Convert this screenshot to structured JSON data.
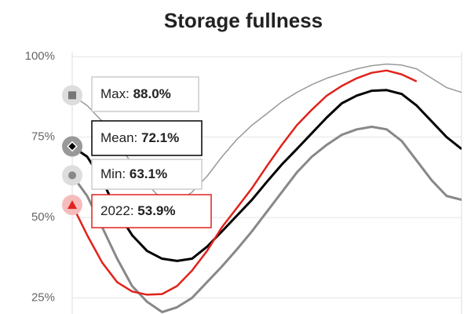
{
  "chart_data": {
    "type": "line",
    "title": "Storage fullness",
    "categories": [
      null,
      null,
      null,
      null,
      null,
      null,
      null,
      null,
      null,
      null,
      null,
      null,
      null,
      null,
      null,
      null,
      null,
      null,
      null,
      null,
      null,
      null,
      null,
      null,
      null,
      null,
      null
    ],
    "ylim": [
      20,
      102
    ],
    "yticks": [
      {
        "value": 25,
        "label": "25%"
      },
      {
        "value": 50,
        "label": "50%"
      },
      {
        "value": 75,
        "label": "75%"
      },
      {
        "value": 100,
        "label": "100%"
      }
    ],
    "grid": true,
    "series": [
      {
        "name": "Max:",
        "start_label": "88.0%",
        "color": "#999999",
        "width": 1.5,
        "marker": "square",
        "values": [
          88.0,
          84.8,
          79.9,
          73.8,
          66.5,
          60.4,
          55.5,
          54.8,
          57.9,
          62.8,
          68.9,
          74.3,
          78.7,
          82.3,
          86.0,
          88.9,
          91.3,
          93.3,
          94.8,
          96.2,
          97.2,
          97.7,
          97.4,
          96.2,
          93.3,
          90.4,
          88.9
        ]
      },
      {
        "name": "Mean:",
        "start_label": "72.1%",
        "color": "#000000",
        "width": 3,
        "marker": "diamond",
        "values": [
          72.1,
          68.9,
          61.6,
          51.8,
          44.5,
          39.6,
          37.2,
          36.5,
          37.2,
          40.9,
          45.7,
          50.6,
          55.5,
          61.1,
          66.5,
          71.3,
          76.2,
          81.1,
          85.5,
          87.9,
          89.4,
          89.6,
          88.4,
          84.8,
          79.9,
          75.0,
          71.3
        ]
      },
      {
        "name": "Min:",
        "start_label": "63.1%",
        "color": "#888888",
        "width": 3,
        "marker": "circle",
        "values": [
          63.1,
          56.7,
          47.0,
          37.2,
          28.7,
          23.8,
          20.6,
          22.1,
          25.0,
          29.9,
          34.8,
          40.1,
          45.7,
          51.8,
          57.9,
          64.0,
          68.9,
          72.6,
          75.7,
          77.4,
          78.2,
          77.4,
          73.8,
          67.7,
          61.6,
          56.7,
          55.5
        ]
      },
      {
        "name": "2022:",
        "start_label": "53.9%",
        "color": "#e0231c",
        "width": 2.5,
        "marker": "triangle",
        "values": [
          53.9,
          44.5,
          36.0,
          29.9,
          27.0,
          26.0,
          26.2,
          28.7,
          33.5,
          39.6,
          47.0,
          53.0,
          59.1,
          66.0,
          72.6,
          78.7,
          83.5,
          87.9,
          90.9,
          93.3,
          95.0,
          95.7,
          94.5,
          92.3,
          null,
          null,
          null
        ]
      }
    ]
  }
}
